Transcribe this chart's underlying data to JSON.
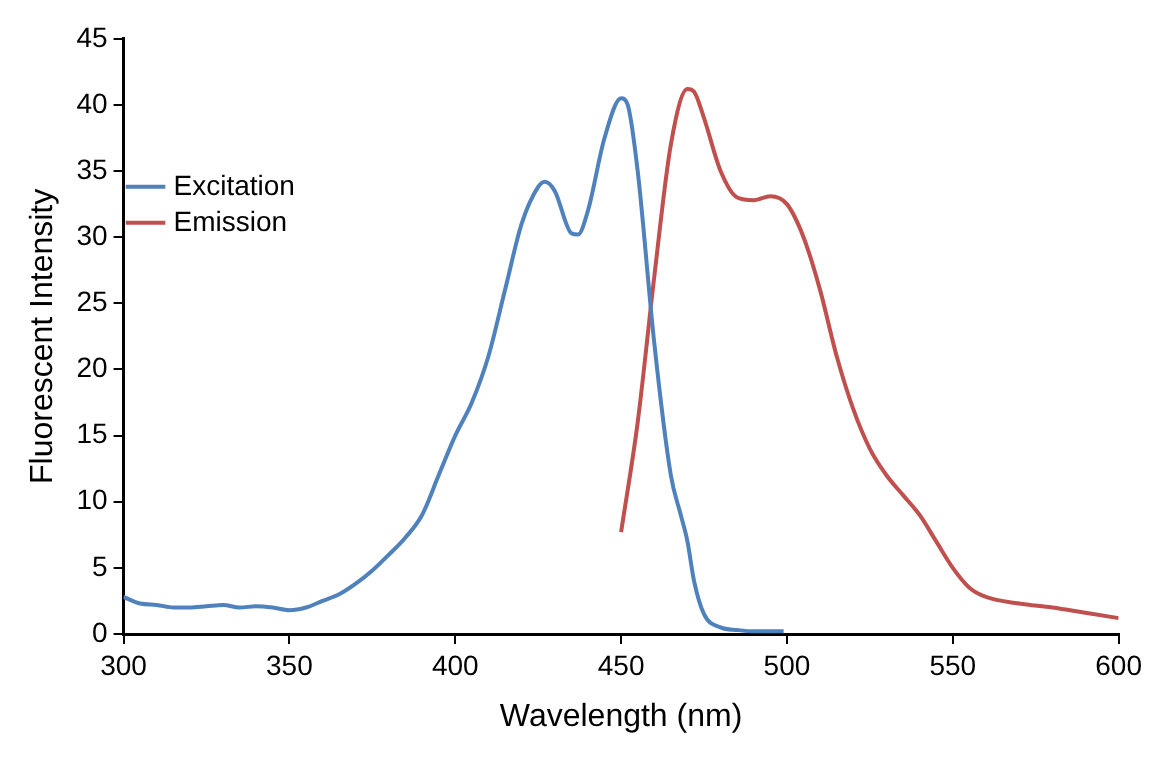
{
  "chart_data": {
    "type": "line",
    "xlabel": "Wavelength (nm)",
    "ylabel": "Fluorescent Intensity",
    "xlim": [
      300,
      600
    ],
    "xticks": [
      300,
      350,
      400,
      450,
      500,
      550,
      600
    ],
    "ylim": [
      0,
      45
    ],
    "yticks": [
      0,
      5,
      10,
      15,
      20,
      25,
      30,
      35,
      40,
      45
    ],
    "grid": false,
    "legend": "top left",
    "marker": "none",
    "line_style": "solid",
    "series": [
      {
        "name": "Excitation",
        "color": "#4f81bd",
        "x": [
          300,
          305,
          310,
          315,
          320,
          325,
          330,
          335,
          340,
          345,
          350,
          355,
          360,
          365,
          370,
          375,
          380,
          385,
          390,
          395,
          400,
          405,
          410,
          415,
          420,
          425,
          427,
          430,
          435,
          437,
          440,
          445,
          450,
          452,
          455,
          460,
          465,
          468,
          470,
          472,
          475,
          480,
          485,
          490,
          499
        ],
        "values": [
          2.8,
          2.3,
          2.2,
          2.0,
          2.0,
          2.1,
          2.2,
          2.0,
          2.1,
          2.0,
          1.8,
          2.0,
          2.5,
          3.0,
          3.8,
          4.8,
          6.0,
          7.3,
          9.0,
          12,
          15,
          17.5,
          21,
          26,
          31,
          33.8,
          34.2,
          33.5,
          30.3,
          30.2,
          32,
          37.5,
          40.5,
          40,
          35,
          22,
          12,
          9,
          7,
          4,
          1.5,
          0.5,
          0.3,
          0.2,
          0.2
        ]
      },
      {
        "name": "Emission",
        "color": "#c0504d",
        "x": [
          450,
          455,
          460,
          465,
          470,
          472,
          475,
          480,
          485,
          490,
          495,
          500,
          505,
          510,
          515,
          520,
          525,
          530,
          535,
          540,
          545,
          550,
          555,
          560,
          570,
          580,
          590,
          600
        ],
        "values": [
          7.7,
          16,
          27,
          37,
          41.2,
          41,
          39,
          35,
          33,
          32.8,
          33.1,
          32.5,
          30,
          26,
          21,
          17,
          14,
          12,
          10.5,
          9,
          7,
          5,
          3.5,
          2.8,
          2.3,
          2.0,
          1.6,
          1.2
        ]
      }
    ]
  }
}
